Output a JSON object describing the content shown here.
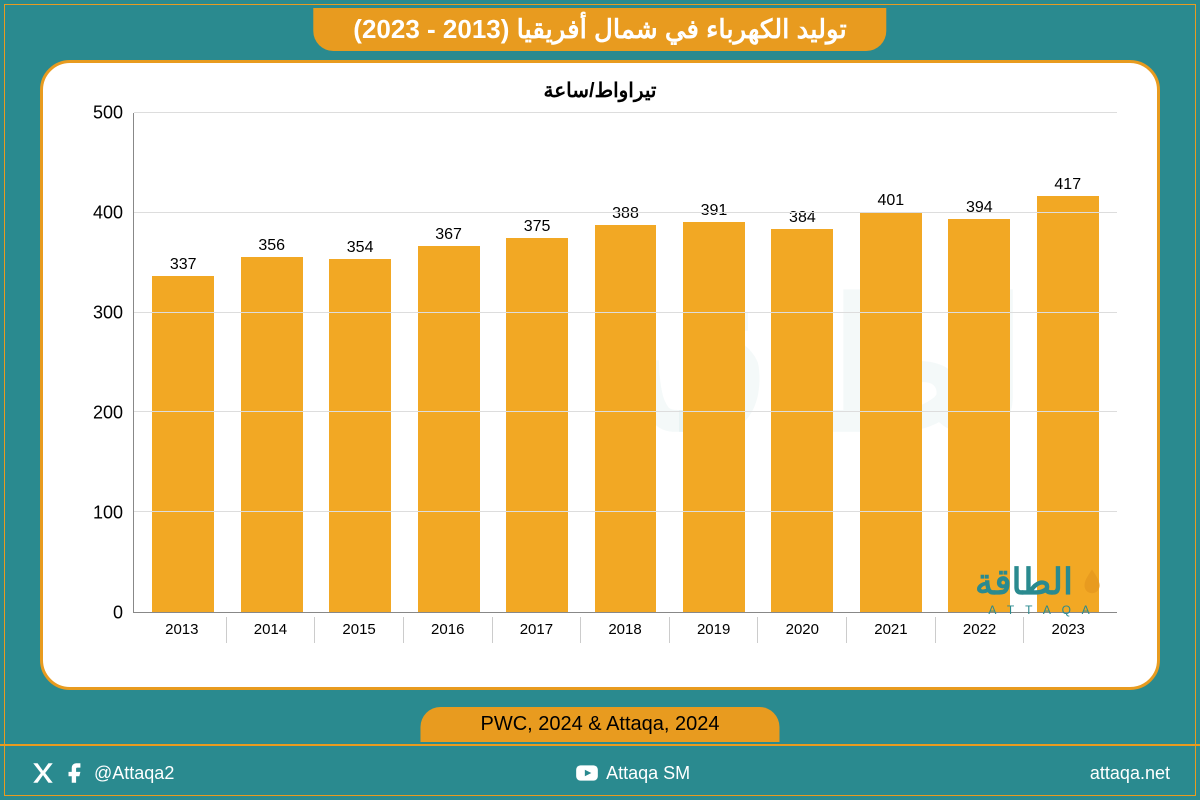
{
  "title": "توليد الكهرباء في شمال أفريقيا (2013 - 2023)",
  "chart": {
    "type": "bar",
    "subtitle": "تيراواط/ساعة",
    "categories": [
      "2013",
      "2014",
      "2015",
      "2016",
      "2017",
      "2018",
      "2019",
      "2020",
      "2021",
      "2022",
      "2023"
    ],
    "values": [
      337,
      356,
      354,
      367,
      375,
      388,
      391,
      384,
      401,
      394,
      417
    ],
    "bar_color": "#f2a824",
    "ylim": [
      0,
      500
    ],
    "ytick_step": 100,
    "yticks": [
      0,
      100,
      200,
      300,
      400,
      500
    ],
    "background_color": "#ffffff",
    "grid_color": "#dddddd",
    "axis_color": "#888888",
    "bar_width": 0.7,
    "value_fontsize": 16,
    "label_fontsize": 15,
    "subtitle_fontsize": 20
  },
  "panel": {
    "border_color": "#e89b1f",
    "border_radius": 30
  },
  "page": {
    "background_color": "#2a8a8f",
    "accent_color": "#e89b1f"
  },
  "source": "PWC, 2024 & Attaqa, 2024",
  "footer": {
    "handle1_icon": "x-icon",
    "handle1b_icon": "facebook-icon",
    "handle1": "@Attaqa2",
    "handle2_icon": "youtube-icon",
    "handle2": "Attaqa SM",
    "website": "attaqa.net"
  },
  "logo": {
    "main": "الطاقة",
    "sub": "A T T A Q A"
  }
}
